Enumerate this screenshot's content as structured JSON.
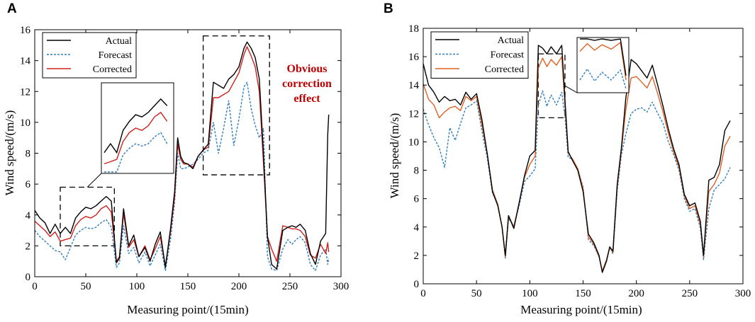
{
  "chart_data": [
    {
      "panel": "A",
      "type": "line",
      "xlabel": "Measuring point/(15min)",
      "ylabel": "Wind speed/(m/s)",
      "xlim": [
        0,
        300
      ],
      "ylim": [
        0,
        16
      ],
      "xticks": [
        0,
        50,
        100,
        150,
        200,
        250,
        300
      ],
      "yticks": [
        0,
        2,
        4,
        6,
        8,
        10,
        12,
        14,
        16
      ],
      "legend": [
        "Actual",
        "Forecast",
        "Corrected"
      ],
      "annotation": [
        "Obvious",
        "correction",
        "effect"
      ],
      "zoom_box_1": {
        "x": [
          25,
          78
        ],
        "y": [
          2,
          5.8
        ]
      },
      "zoom_box_2": {
        "x": [
          165,
          230
        ],
        "y": [
          6.6,
          15.6
        ]
      },
      "series": [
        {
          "name": "Actual",
          "color": "#000000",
          "style": "solid",
          "x": [
            0,
            5,
            10,
            15,
            20,
            25,
            30,
            35,
            40,
            45,
            50,
            55,
            60,
            65,
            70,
            75,
            80,
            83,
            87,
            92,
            97,
            102,
            108,
            113,
            118,
            123,
            128,
            133,
            137,
            140,
            143,
            146,
            150,
            155,
            160,
            165,
            170,
            175,
            180,
            185,
            190,
            195,
            200,
            205,
            208,
            212,
            216,
            220,
            224,
            228,
            232,
            237,
            243,
            248,
            252,
            256,
            260,
            265,
            270,
            275,
            280,
            285,
            287,
            288
          ],
          "values": [
            4.3,
            3.8,
            3.5,
            2.8,
            3.4,
            2.8,
            3.2,
            2.8,
            3.8,
            4.2,
            4.5,
            4.4,
            4.6,
            4.9,
            5.2,
            4.9,
            0.9,
            1.2,
            4.4,
            2.0,
            2.7,
            1.3,
            1.9,
            1.0,
            2.1,
            2.9,
            0.6,
            3.1,
            5.5,
            9.0,
            7.8,
            7.4,
            7.3,
            7.0,
            7.8,
            8.2,
            8.6,
            12.6,
            12.4,
            12.2,
            12.8,
            13.1,
            13.6,
            14.8,
            15.2,
            14.8,
            14.2,
            12.8,
            8.0,
            2.6,
            0.8,
            0.5,
            3.0,
            3.2,
            3.3,
            3.2,
            3.4,
            3.0,
            1.5,
            0.8,
            2.3,
            2.8,
            9.2,
            10.5
          ]
        },
        {
          "name": "Forecast",
          "color": "#2f7fc1",
          "style": "dashed",
          "x": [
            0,
            5,
            10,
            15,
            20,
            25,
            30,
            35,
            40,
            45,
            50,
            55,
            60,
            65,
            70,
            75,
            80,
            83,
            87,
            92,
            97,
            102,
            108,
            113,
            118,
            123,
            128,
            133,
            137,
            140,
            143,
            146,
            150,
            155,
            160,
            165,
            170,
            175,
            180,
            185,
            190,
            195,
            200,
            205,
            208,
            212,
            216,
            220,
            224,
            228,
            232,
            237,
            243,
            248,
            252,
            256,
            260,
            265,
            270,
            275,
            280,
            285,
            287,
            288
          ],
          "values": [
            3.0,
            2.6,
            2.3,
            2.0,
            1.7,
            1.6,
            1.1,
            1.9,
            2.7,
            3.0,
            3.2,
            3.1,
            3.2,
            3.5,
            3.7,
            3.2,
            0.6,
            0.9,
            3.3,
            1.5,
            1.9,
            0.9,
            1.6,
            0.7,
            1.4,
            2.1,
            0.4,
            2.4,
            4.8,
            8.0,
            7.0,
            7.0,
            7.1,
            7.3,
            7.6,
            8.0,
            8.2,
            10.0,
            8.0,
            9.6,
            11.4,
            8.5,
            10.2,
            12.3,
            12.6,
            10.9,
            9.8,
            9.0,
            9.6,
            1.3,
            0.5,
            0.4,
            1.8,
            2.4,
            2.1,
            2.4,
            2.6,
            2.2,
            0.8,
            0.4,
            1.4,
            1.8,
            0.8,
            1.2
          ]
        },
        {
          "name": "Corrected",
          "color": "#d0201b",
          "style": "solid",
          "x": [
            0,
            5,
            10,
            15,
            20,
            25,
            30,
            35,
            40,
            45,
            50,
            55,
            60,
            65,
            70,
            75,
            80,
            83,
            87,
            92,
            97,
            102,
            108,
            113,
            118,
            123,
            128,
            133,
            137,
            140,
            143,
            146,
            150,
            155,
            160,
            165,
            170,
            175,
            180,
            185,
            190,
            195,
            200,
            205,
            208,
            212,
            216,
            220,
            224,
            228,
            232,
            237,
            243,
            248,
            252,
            256,
            260,
            265,
            270,
            275,
            280,
            285,
            287,
            288
          ],
          "values": [
            3.6,
            3.3,
            3.0,
            2.6,
            2.9,
            2.3,
            2.4,
            2.5,
            3.3,
            3.7,
            3.9,
            3.8,
            4.0,
            4.4,
            4.6,
            4.2,
            1.0,
            1.3,
            4.1,
            1.9,
            2.4,
            1.3,
            2.0,
            1.1,
            1.8,
            2.6,
            0.7,
            2.9,
            5.2,
            8.6,
            7.6,
            7.3,
            7.3,
            7.1,
            7.8,
            8.2,
            8.4,
            11.6,
            11.6,
            11.8,
            12.0,
            12.6,
            13.2,
            14.4,
            14.9,
            14.3,
            13.6,
            12.0,
            7.4,
            2.6,
            1.8,
            1.0,
            3.3,
            3.2,
            3.1,
            3.1,
            3.0,
            2.6,
            1.4,
            1.2,
            2.1,
            1.5,
            2.2,
            1.6
          ]
        }
      ]
    },
    {
      "panel": "B",
      "type": "line",
      "xlabel": "Measuring point/(15min)",
      "ylabel": "Wind speed/(m/s)",
      "xlim": [
        0,
        300
      ],
      "ylim": [
        0,
        18
      ],
      "xticks": [
        0,
        50,
        100,
        150,
        200,
        250,
        300
      ],
      "yticks": [
        0,
        2,
        4,
        6,
        8,
        10,
        12,
        14,
        16,
        18
      ],
      "legend": [
        "Actual",
        "Forecast",
        "Corrected"
      ],
      "zoom_box_1": {
        "x": [
          108,
          133
        ],
        "y": [
          11.7,
          16.2
        ]
      },
      "series": [
        {
          "name": "Actual",
          "color": "#000000",
          "style": "solid",
          "x": [
            0,
            5,
            10,
            15,
            20,
            25,
            30,
            35,
            40,
            45,
            50,
            55,
            60,
            65,
            70,
            74,
            77,
            80,
            85,
            90,
            95,
            100,
            105,
            108,
            112,
            116,
            120,
            125,
            130,
            133,
            136,
            140,
            145,
            150,
            155,
            160,
            165,
            168,
            172,
            175,
            178,
            182,
            186,
            190,
            195,
            200,
            205,
            210,
            215,
            220,
            225,
            230,
            235,
            240,
            245,
            250,
            255,
            260,
            263,
            268,
            273,
            278,
            283,
            288
          ],
          "values": [
            15.5,
            14.0,
            13.5,
            12.8,
            13.2,
            12.9,
            13.0,
            12.6,
            13.5,
            13.0,
            13.4,
            11.6,
            9.2,
            6.5,
            5.5,
            4.0,
            2.0,
            4.8,
            3.9,
            5.7,
            7.6,
            9.0,
            9.4,
            16.8,
            16.6,
            16.2,
            16.7,
            16.2,
            16.8,
            13.0,
            9.3,
            8.7,
            8.0,
            6.5,
            3.5,
            2.9,
            2.0,
            0.8,
            1.6,
            2.6,
            2.3,
            7.0,
            9.6,
            13.0,
            15.8,
            15.5,
            15.0,
            14.5,
            15.4,
            14.0,
            12.5,
            10.9,
            9.5,
            8.4,
            6.3,
            5.5,
            5.7,
            4.4,
            2.0,
            7.3,
            7.5,
            8.4,
            10.8,
            11.5
          ]
        },
        {
          "name": "Forecast",
          "color": "#2f7fc1",
          "style": "dashed",
          "x": [
            0,
            5,
            10,
            15,
            20,
            25,
            30,
            35,
            40,
            45,
            50,
            55,
            60,
            65,
            70,
            74,
            77,
            80,
            85,
            90,
            95,
            100,
            105,
            108,
            112,
            116,
            120,
            125,
            130,
            133,
            136,
            140,
            145,
            150,
            155,
            160,
            165,
            168,
            172,
            175,
            178,
            182,
            186,
            190,
            195,
            200,
            205,
            210,
            215,
            220,
            225,
            230,
            235,
            240,
            245,
            250,
            255,
            260,
            263,
            268,
            273,
            278,
            283,
            288
          ],
          "values": [
            12.3,
            11.2,
            10.3,
            9.6,
            8.2,
            11.0,
            10.1,
            11.3,
            12.4,
            12.6,
            12.9,
            10.8,
            8.9,
            6.4,
            5.6,
            4.0,
            1.8,
            4.6,
            4.1,
            5.5,
            7.2,
            7.6,
            8.1,
            12.6,
            13.6,
            12.5,
            13.3,
            12.6,
            13.5,
            11.8,
            8.9,
            8.8,
            8.1,
            6.8,
            3.1,
            2.7,
            1.9,
            0.9,
            1.7,
            2.6,
            2.1,
            6.5,
            9.1,
            10.5,
            12.0,
            12.3,
            12.4,
            12.1,
            12.8,
            12.0,
            11.3,
            10.0,
            9.1,
            8.0,
            6.0,
            5.1,
            5.3,
            3.9,
            1.7,
            5.3,
            6.6,
            7.0,
            7.4,
            8.2
          ]
        },
        {
          "name": "Corrected",
          "color": "#e06024",
          "style": "solid",
          "x": [
            0,
            5,
            10,
            15,
            20,
            25,
            30,
            35,
            40,
            45,
            50,
            55,
            60,
            65,
            70,
            74,
            77,
            80,
            85,
            90,
            95,
            100,
            105,
            108,
            112,
            116,
            120,
            125,
            130,
            133,
            136,
            140,
            145,
            150,
            155,
            160,
            165,
            168,
            172,
            175,
            178,
            182,
            186,
            190,
            195,
            200,
            205,
            210,
            215,
            220,
            225,
            230,
            235,
            240,
            245,
            250,
            255,
            260,
            263,
            268,
            273,
            278,
            283,
            288
          ],
          "values": [
            14.1,
            13.0,
            12.6,
            11.7,
            12.1,
            12.4,
            12.5,
            12.2,
            13.2,
            12.9,
            13.2,
            11.2,
            9.2,
            6.6,
            5.6,
            4.0,
            1.9,
            4.8,
            4.0,
            5.7,
            7.5,
            8.4,
            9.0,
            15.2,
            15.9,
            15.3,
            15.8,
            15.4,
            16.0,
            12.6,
            9.2,
            8.8,
            8.1,
            6.7,
            3.3,
            2.8,
            1.9,
            0.9,
            1.7,
            2.6,
            2.2,
            6.8,
            9.4,
            12.2,
            14.5,
            14.6,
            14.2,
            13.8,
            14.6,
            13.4,
            12.1,
            10.6,
            9.3,
            8.2,
            6.2,
            5.3,
            5.5,
            4.2,
            1.9,
            6.5,
            7.0,
            7.8,
            9.7,
            10.4
          ]
        }
      ]
    }
  ]
}
